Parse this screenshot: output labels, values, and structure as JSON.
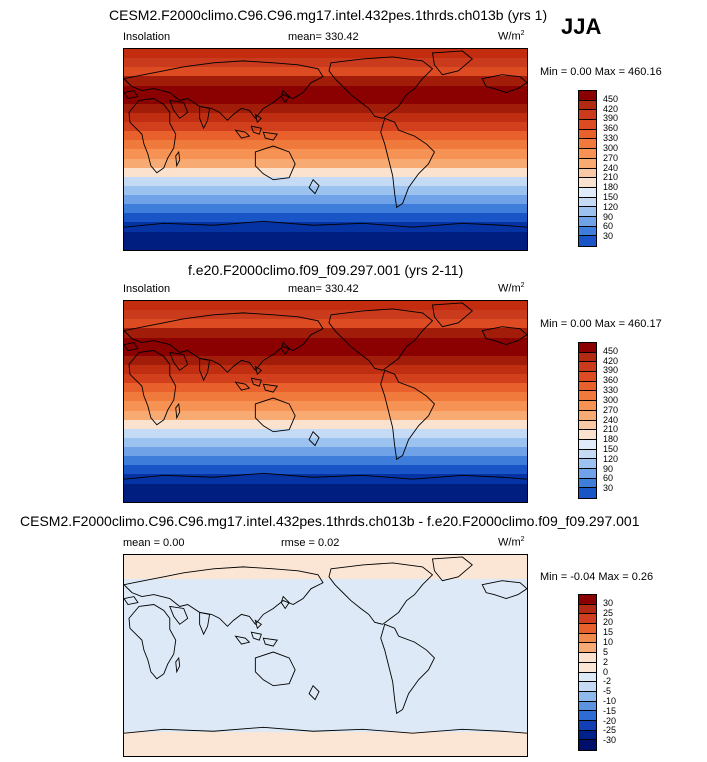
{
  "season": "JJA",
  "panels": [
    {
      "title": "CESM2.F2000climo.C96.C96.mg17.intel.432pes.1thrds.ch013b (yrs 1)",
      "left_label": "Insolation",
      "center_label": "mean= 330.42",
      "units_base": "W/m",
      "units_exp": "2",
      "minmax": "Min =  0.00 Max = 460.16"
    },
    {
      "title": "f.e20.F2000climo.f09_f09.297.001 (yrs 2-11)",
      "left_label": "Insolation",
      "center_label": "mean= 330.42",
      "units_base": "W/m",
      "units_exp": "2",
      "minmax": "Min =  0.00 Max = 460.17"
    },
    {
      "title": "CESM2.F2000climo.C96.C96.mg17.intel.432pes.1thrds.ch013b - f.e20.F2000climo.f09_f09.297.001",
      "left_label": "mean =   0.00",
      "center_label": "rmse =   0.02",
      "units_base": "W/m",
      "units_exp": "2",
      "minmax": "Min =  -0.04 Max =   0.26"
    }
  ],
  "colorbars": {
    "abs_ticks": [
      "450",
      "420",
      "390",
      "360",
      "330",
      "300",
      "270",
      "240",
      "210",
      "180",
      "150",
      "120",
      "90",
      "60",
      "30"
    ],
    "abs_colors": [
      "#8b0000",
      "#b22a12",
      "#c93b1c",
      "#dc4b22",
      "#e8612c",
      "#f07a3c",
      "#f59254",
      "#f7ab72",
      "#f9c8a4",
      "#fbe2cf",
      "#e0ecfa",
      "#c5dbf5",
      "#9cc2ef",
      "#6fa2e6",
      "#3f7ddb",
      "#1a55c8",
      "#0633a3",
      "#001e80"
    ],
    "diff_ticks": [
      "30",
      "25",
      "20",
      "15",
      "10",
      "5",
      "2",
      "0",
      "-2",
      "-5",
      "-10",
      "-15",
      "-20",
      "-25",
      "-30"
    ],
    "diff_colors": [
      "#8b0000",
      "#b22a12",
      "#d13e1f",
      "#e8612c",
      "#f28a4b",
      "#f7ab72",
      "#fbe2cf",
      "#fbe6d6",
      "#dde9f7",
      "#c5dbf5",
      "#8fb8ec",
      "#5b93e0",
      "#2f6bd5",
      "#123fb3",
      "#00208a"
    ]
  },
  "map_colors": {
    "abs_bands": [
      "#c32c0e",
      "#c93b1c",
      "#dc4b22",
      "#a21c0a",
      "#8b0000",
      "#8b0000",
      "#a21c0a",
      "#c02e12",
      "#d23f1c",
      "#e8612c",
      "#f07a3c",
      "#f59254",
      "#f7ab72",
      "#fbe2cf",
      "#c5dbf5",
      "#9cc2ef",
      "#6fa2e6",
      "#3f7ddb",
      "#1a55c8",
      "#0633a3",
      "#001e80",
      "#001e80"
    ],
    "diff_top": "#fbe6d6",
    "diff_mid": "#dde9f7",
    "diff_bottom": "#fbe6d6"
  }
}
